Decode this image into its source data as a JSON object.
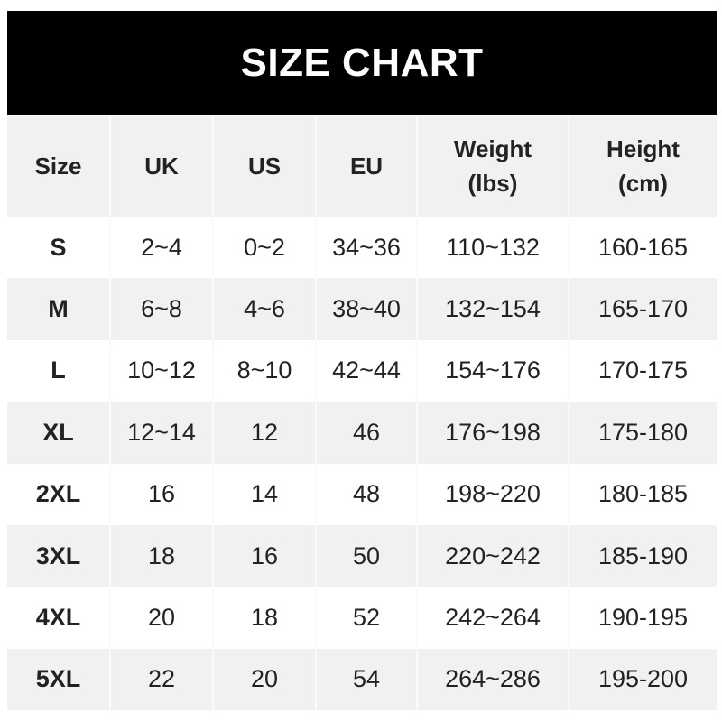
{
  "title": "SIZE CHART",
  "headers": [
    "Size",
    "UK",
    "US",
    "EU",
    "Weight\n(lbs)",
    "Height\n(cm)"
  ],
  "header_lines": [
    [
      "Size"
    ],
    [
      "UK"
    ],
    [
      "US"
    ],
    [
      "EU"
    ],
    [
      "Weight",
      "(lbs)"
    ],
    [
      "Height",
      "(cm)"
    ]
  ],
  "rows": [
    [
      "S",
      "2~4",
      "0~2",
      "34~36",
      "110~132",
      "160-165"
    ],
    [
      "M",
      "6~8",
      "4~6",
      "38~40",
      "132~154",
      "165-170"
    ],
    [
      "L",
      "10~12",
      "8~10",
      "42~44",
      "154~176",
      "170-175"
    ],
    [
      "XL",
      "12~14",
      "12",
      "46",
      "176~198",
      "175-180"
    ],
    [
      "2XL",
      "16",
      "14",
      "48",
      "198~220",
      "180-185"
    ],
    [
      "3XL",
      "18",
      "16",
      "50",
      "220~242",
      "185-190"
    ],
    [
      "4XL",
      "20",
      "18",
      "52",
      "242~264",
      "190-195"
    ],
    [
      "5XL",
      "22",
      "20",
      "54",
      "264~286",
      "195-200"
    ]
  ],
  "colors": {
    "banner": "#000000",
    "stripe": "#f1f1f1",
    "text": "#222222"
  }
}
